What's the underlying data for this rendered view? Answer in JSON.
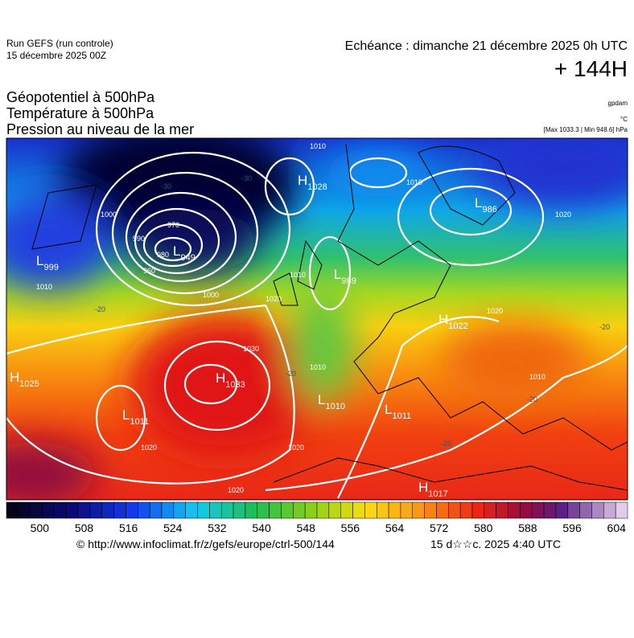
{
  "header": {
    "run": "Run GEFS (run controle)",
    "run_date": "15 décembre 2025 00Z",
    "echeance": "Echéance : dimanche 21 décembre 2025 0h UTC",
    "lead": "+ 144H",
    "layers": [
      "Géopotentiel à 500hPa",
      "Température à 500hPa",
      "Pression au niveau de la mer"
    ],
    "units": [
      "gpdam",
      "°C",
      "[Max 1033.3 | Min 948.6] hPa"
    ]
  },
  "centers": [
    {
      "type": "H",
      "value": 1028
    },
    {
      "type": "L",
      "value": 949
    },
    {
      "type": "L",
      "value": 999
    },
    {
      "type": "L",
      "value": 986
    },
    {
      "type": "L",
      "value": 989
    },
    {
      "type": "H",
      "value": 1025
    },
    {
      "type": "H",
      "value": 1033
    },
    {
      "type": "L",
      "value": 1011
    },
    {
      "type": "L",
      "value": 1010
    },
    {
      "type": "L",
      "value": 1011
    },
    {
      "type": "H",
      "value": 1017
    },
    {
      "type": "H",
      "value": 1022
    }
  ],
  "isobar_labels": [
    1010,
    1000,
    990,
    980,
    970,
    960,
    1010,
    1010,
    1020,
    1030,
    1020,
    1020,
    1020,
    1010,
    1000,
    1010,
    1020,
    1020,
    1010
  ],
  "temperature_labels": [
    -30,
    -30,
    -20,
    -20,
    -20,
    -20,
    -20
  ],
  "colorbar": {
    "lim": [
      494,
      606
    ],
    "ticks": [
      500,
      508,
      516,
      524,
      532,
      540,
      548,
      556,
      564,
      572,
      580,
      588,
      596,
      604
    ]
  },
  "footer": {
    "url": "© http://www.infoclimat.fr/z/gefs/europe/ctrl-500/144",
    "generated": "15 d☆☆c. 2025  4:40 UTC"
  }
}
